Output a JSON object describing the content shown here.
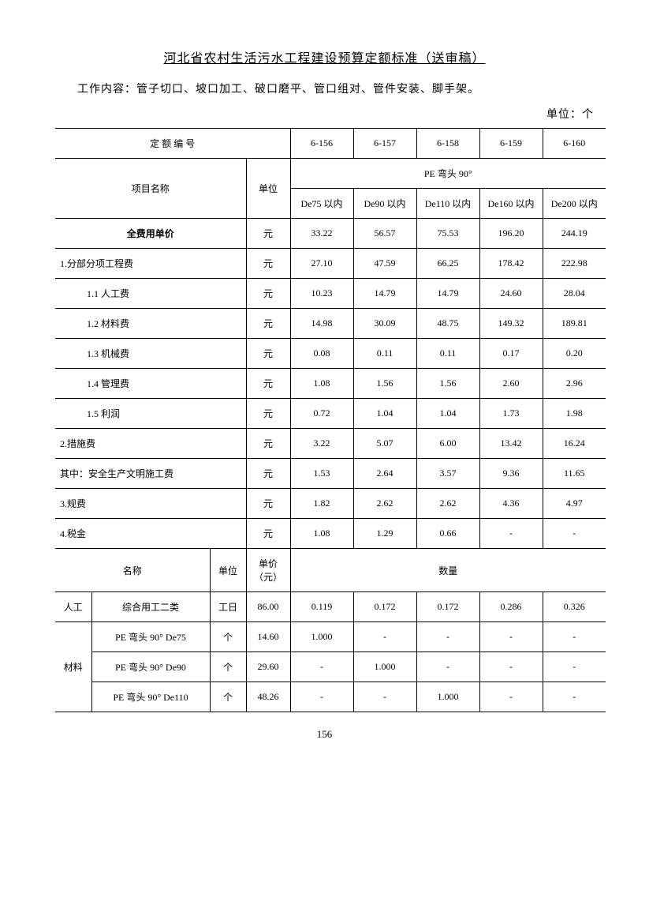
{
  "page": {
    "title": "河北省农村生活污水工程建设预算定额标准（送审稿）",
    "work_content": "工作内容：管子切口、坡口加工、破口磨平、管口组对、管件安装、脚手架。",
    "unit_label": "单位：个",
    "page_number": "156"
  },
  "header": {
    "quota_code_label": "定 额 编 号",
    "codes": [
      "6-156",
      "6-157",
      "6-158",
      "6-159",
      "6-160"
    ],
    "project_name_label": "项目名称",
    "unit_label": "单位",
    "group_label": "PE 弯头 90°",
    "specs": [
      "De75 以内",
      "De90 以内",
      "De110 以内",
      "De160 以内",
      "De200 以内"
    ]
  },
  "costs": {
    "rows": [
      {
        "name": "全费用单价",
        "unit": "元",
        "v": [
          "33.22",
          "56.57",
          "75.53",
          "196.20",
          "244.19"
        ],
        "bold": true,
        "type": "center"
      },
      {
        "name": "1.分部分项工程费",
        "unit": "元",
        "v": [
          "27.10",
          "47.59",
          "66.25",
          "178.42",
          "222.98"
        ],
        "type": "left"
      },
      {
        "name": "1.1 人工费",
        "unit": "元",
        "v": [
          "10.23",
          "14.79",
          "14.79",
          "24.60",
          "28.04"
        ],
        "type": "indent"
      },
      {
        "name": "1.2 材料费",
        "unit": "元",
        "v": [
          "14.98",
          "30.09",
          "48.75",
          "149.32",
          "189.81"
        ],
        "type": "indent"
      },
      {
        "name": "1.3 机械费",
        "unit": "元",
        "v": [
          "0.08",
          "0.11",
          "0.11",
          "0.17",
          "0.20"
        ],
        "type": "indent"
      },
      {
        "name": "1.4 管理费",
        "unit": "元",
        "v": [
          "1.08",
          "1.56",
          "1.56",
          "2.60",
          "2.96"
        ],
        "type": "indent"
      },
      {
        "name": "1.5 利润",
        "unit": "元",
        "v": [
          "0.72",
          "1.04",
          "1.04",
          "1.73",
          "1.98"
        ],
        "type": "indent"
      },
      {
        "name": "2.措施费",
        "unit": "元",
        "v": [
          "3.22",
          "5.07",
          "6.00",
          "13.42",
          "16.24"
        ],
        "type": "left"
      },
      {
        "name": "其中：安全生产文明施工费",
        "unit": "元",
        "v": [
          "1.53",
          "2.64",
          "3.57",
          "9.36",
          "11.65"
        ],
        "type": "left"
      },
      {
        "name": "3.规费",
        "unit": "元",
        "v": [
          "1.82",
          "2.62",
          "2.62",
          "4.36",
          "4.97"
        ],
        "type": "left"
      },
      {
        "name": "4.税金",
        "unit": "元",
        "v": [
          "1.08",
          "1.29",
          "0.66",
          "-",
          "-"
        ],
        "type": "left"
      }
    ]
  },
  "detail": {
    "name_label": "名称",
    "unit_label": "单位",
    "unit_price_label": "单价（元）",
    "qty_label": "数量",
    "labor_label": "人工",
    "material_label": "材料",
    "labor_rows": [
      {
        "name": "综合用工二类",
        "unit": "工日",
        "price": "86.00",
        "v": [
          "0.119",
          "0.172",
          "0.172",
          "0.286",
          "0.326"
        ]
      }
    ],
    "material_rows": [
      {
        "name": "PE 弯头 90° De75",
        "unit": "个",
        "price": "14.60",
        "v": [
          "1.000",
          "-",
          "-",
          "-",
          "-"
        ]
      },
      {
        "name": "PE 弯头 90° De90",
        "unit": "个",
        "price": "29.60",
        "v": [
          "-",
          "1.000",
          "-",
          "-",
          "-"
        ]
      },
      {
        "name": "PE 弯头 90° De110",
        "unit": "个",
        "price": "48.26",
        "v": [
          "-",
          "-",
          "1.000",
          "-",
          "-"
        ]
      }
    ]
  }
}
